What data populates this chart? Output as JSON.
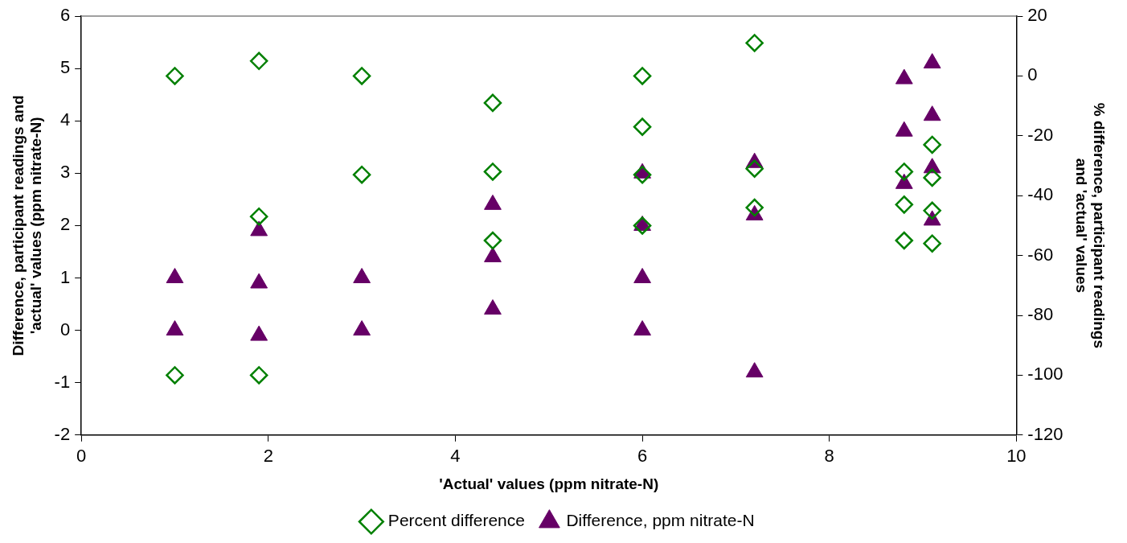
{
  "chart_data": {
    "type": "scatter",
    "xlabel": "'Actual' values (ppm nitrate-N)",
    "ylabel": "Difference, participant readings and 'actual' values (ppm nitrate-N)",
    "y2label": "% difference, participant readings and 'actual' values",
    "xlim": [
      0,
      10
    ],
    "xticks": [
      0,
      2,
      4,
      6,
      8,
      10
    ],
    "ylim": [
      -2,
      6
    ],
    "yticks": [
      -2,
      -1,
      0,
      1,
      2,
      3,
      4,
      5,
      6
    ],
    "y2lim": [
      -120,
      20
    ],
    "y2ticks": [
      -120,
      -100,
      -80,
      -60,
      -40,
      -20,
      0,
      20
    ],
    "grid": false,
    "legend": "bottom",
    "series": [
      {
        "name": "Difference, ppm nitrate-N",
        "color": "#660066",
        "marker": "triangle",
        "x": [
          1,
          1,
          1.9,
          1.9,
          1.9,
          3,
          3,
          4.4,
          4.4,
          4.4,
          6,
          6,
          6,
          6,
          7.2,
          7.2,
          7.2,
          8.8,
          8.8,
          8.8,
          9.1,
          9.1,
          9.1,
          9.1
        ],
        "values": [
          1,
          0,
          1.9,
          0.9,
          -0.1,
          1,
          0,
          2.4,
          1.4,
          0.4,
          3,
          2,
          1,
          0,
          3.2,
          2.2,
          -0.8,
          4.8,
          3.8,
          2.8,
          5.1,
          4.1,
          3.1,
          2.1
        ]
      },
      {
        "name": "Percent difference",
        "color": "#008000",
        "marker": "diamond",
        "axis": "y2",
        "x": [
          1,
          1,
          1.9,
          1.9,
          1.9,
          3,
          3,
          4.4,
          4.4,
          4.4,
          6,
          6,
          6,
          6,
          7.2,
          7.2,
          7.2,
          8.8,
          8.8,
          8.8,
          9.1,
          9.1,
          9.1,
          9.1
        ],
        "values": [
          0,
          -100,
          5,
          -47,
          -100,
          0,
          -33,
          -9,
          -32,
          -55,
          0,
          -17,
          -33,
          -50,
          11,
          -31,
          -44,
          -32,
          -43,
          -55,
          -23,
          -34,
          -45,
          -56
        ]
      }
    ]
  }
}
